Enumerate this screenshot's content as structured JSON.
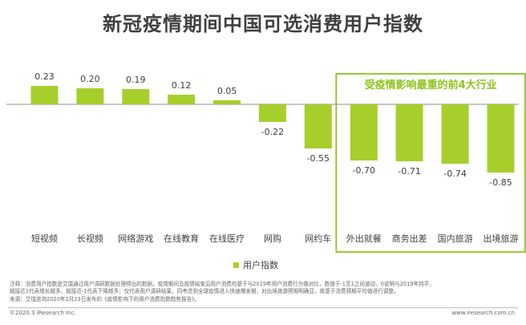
{
  "title": "新冠疫情期间中国可选消费用户指数",
  "highlight_label": "受疫情影响最重的前4大行业",
  "legend_label": "用户指数",
  "colors": {
    "bar": "#a6cf2c",
    "highlight_border": "#8ec41c",
    "highlight_text": "#8ec41c",
    "axis": "#8c8c8c",
    "label": "#404040"
  },
  "chart_data": {
    "type": "bar",
    "categories": [
      "短视频",
      "长视频",
      "网络游戏",
      "在线教育",
      "在线医疗",
      "网购",
      "网约车",
      "外出就餐",
      "商务出差",
      "国内旅游",
      "出境旅游"
    ],
    "series": [
      {
        "name": "用户指数",
        "values": [
          0.23,
          0.2,
          0.19,
          0.12,
          0.05,
          -0.22,
          -0.55,
          -0.7,
          -0.71,
          -0.74,
          -0.85
        ]
      }
    ],
    "value_labels": [
      "0.23",
      "0.20",
      "0.19",
      "0.12",
      "0.05",
      "-0.22",
      "-0.55",
      "-0.70",
      "-0.71",
      "-0.74",
      "-0.85"
    ],
    "title": "新冠疫情期间中国可选消费用户指数",
    "xlabel": "",
    "ylabel": "",
    "ylim": [
      -0.85,
      0.23
    ],
    "grid": false,
    "legend": "bottom"
  },
  "notes": [
    "注释：消费用户指数是艾瑞通过用户调研数据处理得出的数据。疫情期间及疫情结束后用户消费均基于与2019年用户消费行为做对比，数值于-1至1之间波动，0说明与2019年持平，",
    "越接近1代表增长越多，越接近-1代表下降越多；仅代表用户调研结果，同考虑到全球疫情进入快速爆发期，对出境旅游预期明确显，故基于消费预期平均值进行调整。",
    "来源：艾瑞咨询2020年2月23日发布的《疫情影响下的用户消费指数趋势报告》。"
  ],
  "footer": {
    "left": "©2020.3 iResearch Inc.",
    "right": "www.iresearch.com.cn"
  }
}
